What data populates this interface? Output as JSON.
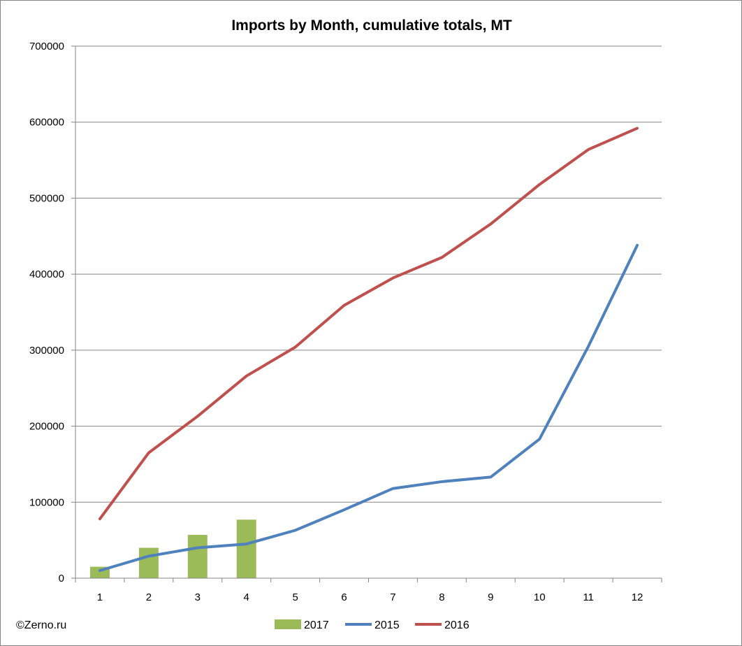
{
  "chart_data": {
    "type": "bar+line",
    "title": "Imports by Month, cumulative totals, MT",
    "categories": [
      "1",
      "2",
      "3",
      "4",
      "5",
      "6",
      "7",
      "8",
      "9",
      "10",
      "11",
      "12"
    ],
    "ylim": [
      0,
      700000
    ],
    "yticks": [
      0,
      100000,
      200000,
      300000,
      400000,
      500000,
      600000,
      700000
    ],
    "ytick_labels": [
      "0",
      "100000",
      "200000",
      "300000",
      "400000",
      "500000",
      "600000",
      "700000"
    ],
    "grid": true,
    "legend": "bottom",
    "series": [
      {
        "name": "2017",
        "type": "bar",
        "color": "#9BBB59",
        "values": [
          15000,
          40000,
          57000,
          77000,
          null,
          null,
          null,
          null,
          null,
          null,
          null,
          null
        ]
      },
      {
        "name": "2015",
        "type": "line",
        "color": "#4F81BD",
        "values": [
          10000,
          29000,
          40000,
          45000,
          63000,
          90000,
          118000,
          127000,
          133000,
          183000,
          305000,
          438000
        ]
      },
      {
        "name": "2016",
        "type": "line",
        "color": "#C0504D",
        "values": [
          78000,
          165000,
          213000,
          266000,
          304000,
          359000,
          395000,
          422000,
          466000,
          518000,
          564000,
          592000
        ]
      }
    ]
  },
  "credit": "©Zerno.ru"
}
